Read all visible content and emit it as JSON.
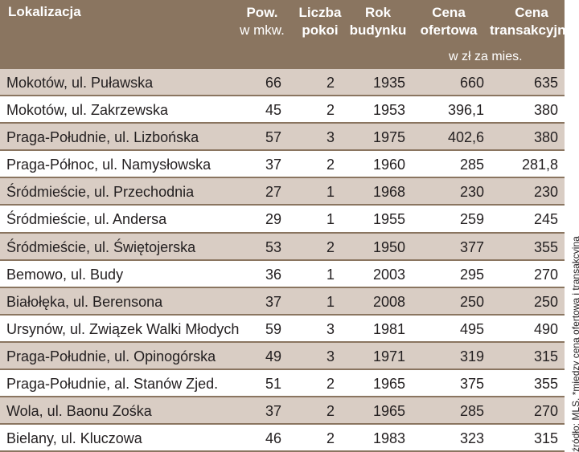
{
  "header": {
    "location": "Lokalizacja",
    "area": "Pow.",
    "area_unit": "w mkw.",
    "rooms_1": "Liczba",
    "rooms_2": "pokoi",
    "year_1": "Rok",
    "year_2": "budynku",
    "offer_1": "Cena",
    "offer_2": "ofertowa",
    "trans_1": "Cena",
    "trans_2": "transakcyjna",
    "price_unit": "w zł za mies."
  },
  "rows": [
    {
      "location": "Mokotów, ul. Puławska",
      "area": "66",
      "rooms": "2",
      "year": "1935",
      "offer": "660",
      "transaction": "635"
    },
    {
      "location": "Mokotów, ul. Zakrzewska",
      "area": "45",
      "rooms": "2",
      "year": "1953",
      "offer": "396,1",
      "transaction": "380"
    },
    {
      "location": "Praga-Południe, ul. Lizbońska",
      "area": "57",
      "rooms": "3",
      "year": "1975",
      "offer": "402,6",
      "transaction": "380"
    },
    {
      "location": "Praga-Północ, ul. Namysłowska",
      "area": "37",
      "rooms": "2",
      "year": "1960",
      "offer": "285",
      "transaction": "281,8"
    },
    {
      "location": "Śródmieście, ul. Przechodnia",
      "area": "27",
      "rooms": "1",
      "year": "1968",
      "offer": "230",
      "transaction": "230"
    },
    {
      "location": "Śródmieście, ul. Andersa",
      "area": "29",
      "rooms": "1",
      "year": "1955",
      "offer": "259",
      "transaction": "245"
    },
    {
      "location": "Śródmieście, ul. Świętojerska",
      "area": "53",
      "rooms": "2",
      "year": "1950",
      "offer": "377",
      "transaction": "355"
    },
    {
      "location": "Bemowo, ul. Budy",
      "area": "36",
      "rooms": "1",
      "year": "2003",
      "offer": "295",
      "transaction": "270"
    },
    {
      "location": "Białołęka, ul. Berensona",
      "area": "37",
      "rooms": "1",
      "year": "2008",
      "offer": "250",
      "transaction": "250"
    },
    {
      "location": "Ursynów, ul. Związek Walki Młodych",
      "area": "59",
      "rooms": "3",
      "year": "1981",
      "offer": "495",
      "transaction": "490"
    },
    {
      "location": "Praga-Południe, ul. Opinogórska",
      "area": "49",
      "rooms": "3",
      "year": "1971",
      "offer": "319",
      "transaction": "315"
    },
    {
      "location": "Praga-Południe, al. Stanów  Zjed.",
      "area": "51",
      "rooms": "2",
      "year": "1965",
      "offer": "375",
      "transaction": "355"
    },
    {
      "location": "Wola, ul. Baonu Zośka",
      "area": "37",
      "rooms": "2",
      "year": "1965",
      "offer": "285",
      "transaction": "270"
    },
    {
      "location": "Bielany, ul. Kluczowa",
      "area": "46",
      "rooms": "2",
      "year": "1983",
      "offer": "323",
      "transaction": "315"
    }
  ],
  "source": "źródło: MLS, *między ceną ofertową i transakcyjną",
  "colors": {
    "header_bg": "#8a7560",
    "shaded_row": "#d9cdc4",
    "rule": "#8a7560"
  }
}
